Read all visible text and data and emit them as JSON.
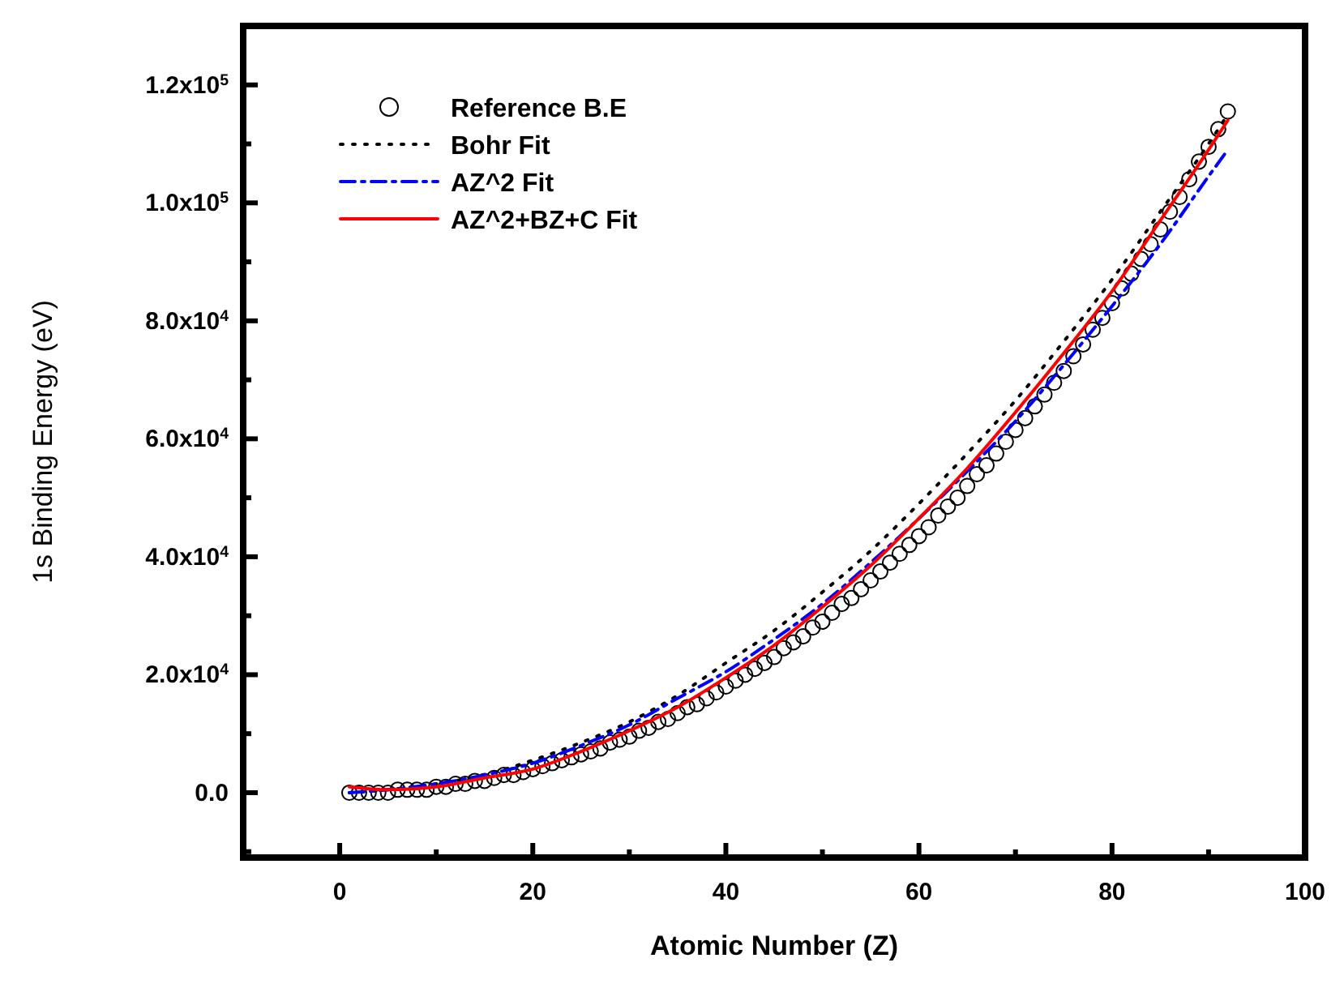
{
  "chart_data": {
    "type": "scatter",
    "xlabel": "Atomic Number (Z)",
    "ylabel": "1s Binding Energy (eV)",
    "xlim": [
      -10,
      100
    ],
    "ylim": [
      -11000,
      130000
    ],
    "xticks": [
      0,
      {
        "value": 10,
        "label": null
      },
      20,
      {
        "value": 30,
        "label": null
      },
      40,
      {
        "value": 50,
        "label": null
      },
      60,
      {
        "value": 70,
        "label": null
      },
      80,
      {
        "value": 90,
        "label": null
      },
      100
    ],
    "yticks": [
      {
        "value": -10000,
        "label": null
      },
      {
        "value": 0,
        "label": "0.0"
      },
      {
        "value": 10000,
        "label": null
      },
      {
        "value": 20000,
        "label": "2.0x10$^{4}$"
      },
      {
        "value": 30000,
        "label": null
      },
      {
        "value": 40000,
        "label": "4.0x10$^{4}$"
      },
      {
        "value": 50000,
        "label": null
      },
      {
        "value": 60000,
        "label": "6.0x10$^{4}$"
      },
      {
        "value": 70000,
        "label": null
      },
      {
        "value": 80000,
        "label": "8.0x10$^{4}$"
      },
      {
        "value": 90000,
        "label": null
      },
      {
        "value": 100000,
        "label": "1.0x10$^{5}$"
      },
      {
        "value": 110000,
        "label": null
      },
      {
        "value": 120000,
        "label": "1.2x10$^{5}$"
      }
    ],
    "legend": "top left",
    "grid": false,
    "series": [
      {
        "name": "Reference B.E",
        "marker": "circle",
        "color": "#000000",
        "x": [
          1,
          2,
          3,
          4,
          5,
          6,
          7,
          8,
          9,
          10,
          11,
          12,
          13,
          14,
          15,
          16,
          17,
          18,
          19,
          20,
          21,
          22,
          23,
          24,
          25,
          26,
          27,
          28,
          29,
          30,
          31,
          32,
          33,
          34,
          35,
          36,
          37,
          38,
          39,
          40,
          41,
          42,
          43,
          44,
          45,
          46,
          47,
          48,
          49,
          50,
          51,
          52,
          53,
          54,
          55,
          56,
          57,
          58,
          59,
          60,
          61,
          62,
          63,
          64,
          65,
          66,
          67,
          68,
          69,
          70,
          71,
          72,
          73,
          74,
          75,
          76,
          77,
          78,
          79,
          80,
          81,
          82,
          83,
          84,
          85,
          86,
          87,
          88,
          89,
          90,
          91,
          92
        ],
        "values": [
          0,
          0,
          0,
          0,
          0,
          500,
          500,
          500,
          500,
          1000,
          1000,
          1500,
          1500,
          2000,
          2000,
          2500,
          3000,
          3000,
          3500,
          4000,
          4500,
          5000,
          5500,
          6000,
          6500,
          7000,
          7500,
          8500,
          9000,
          9500,
          10500,
          11000,
          12000,
          12500,
          13500,
          14500,
          15000,
          16000,
          17000,
          18000,
          19000,
          20000,
          21000,
          22000,
          23000,
          24500,
          25500,
          26500,
          28000,
          29000,
          30500,
          32000,
          33000,
          34500,
          36000,
          37500,
          39000,
          40500,
          42000,
          43500,
          45000,
          47000,
          48500,
          50000,
          52000,
          54000,
          55500,
          57500,
          59500,
          61500,
          63500,
          65500,
          67500,
          69500,
          71500,
          74000,
          76000,
          78500,
          80500,
          83000,
          85500,
          88000,
          90500,
          93000,
          95500,
          98500,
          101000,
          104000,
          107000,
          109500,
          112500,
          115500
        ]
      },
      {
        "name": "Bohr Fit",
        "type": "line",
        "line_style": "dotted",
        "color": "#000000",
        "x": [
          1,
          5,
          10,
          15,
          20,
          25,
          30,
          35,
          40,
          45,
          50,
          55,
          60,
          65,
          70,
          75,
          80,
          85,
          90,
          92
        ],
        "values": [
          0,
          500,
          1500,
          3000,
          5500,
          8500,
          12000,
          16500,
          22000,
          27500,
          34000,
          41000,
          49000,
          57500,
          66500,
          76500,
          87000,
          98500,
          110000,
          115000
        ]
      },
      {
        "name": "AZ^2 Fit",
        "type": "line",
        "line_style": "dashed",
        "color": "#0000ff",
        "x": [
          1,
          5,
          10,
          15,
          20,
          25,
          30,
          35,
          40,
          45,
          50,
          55,
          60,
          65,
          70,
          75,
          80,
          85,
          90,
          92
        ],
        "values": [
          0,
          500,
          1500,
          3000,
          5000,
          8000,
          11500,
          16000,
          20500,
          26000,
          32000,
          39000,
          46500,
          54500,
          63000,
          72500,
          82500,
          93000,
          104500,
          109000
        ]
      },
      {
        "name": "AZ^2+BZ+C Fit",
        "type": "line",
        "line_style": "solid",
        "color": "#ff0000",
        "x": [
          1,
          5,
          10,
          15,
          20,
          25,
          30,
          35,
          40,
          45,
          50,
          55,
          60,
          65,
          70,
          75,
          80,
          85,
          90,
          92
        ],
        "values": [
          1000,
          500,
          1000,
          2500,
          4000,
          7000,
          10500,
          14500,
          19500,
          25000,
          31500,
          38500,
          46500,
          55000,
          64500,
          74500,
          85000,
          97000,
          109000,
          114000
        ]
      }
    ]
  }
}
